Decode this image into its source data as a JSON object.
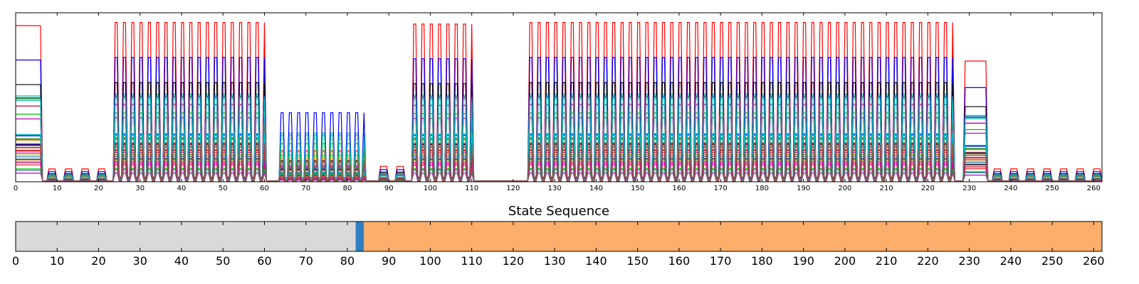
{
  "figure": {
    "state_title": "State Sequence"
  },
  "chart_data": [
    {
      "type": "line",
      "title": "",
      "xlabel": "",
      "ylabel": "",
      "xlim": [
        0,
        262
      ],
      "ylim": [
        0,
        1.05
      ],
      "x_ticks": [
        0,
        10,
        20,
        30,
        40,
        50,
        60,
        70,
        80,
        90,
        100,
        110,
        120,
        130,
        140,
        150,
        160,
        170,
        180,
        190,
        200,
        210,
        220,
        230,
        240,
        250,
        260
      ],
      "y_ticks": [],
      "grid": false,
      "legend": "none",
      "series_colors": [
        "#ff0000",
        "#00bfbf",
        "#0000ff",
        "#000000",
        "#bf00bf",
        "#007f00",
        "#bfbf00",
        "#00bf00",
        "#ff7f0e",
        "#1f77b4",
        "#c000c0",
        "#00c0c0",
        "#d62728",
        "#8c564b"
      ],
      "dense_bursts": [
        {
          "x_start": 0,
          "x_end": 6,
          "amplitude": 0.97,
          "note_color": "#ff0000"
        },
        {
          "x_start": 24,
          "x_end": 60,
          "amplitude": 0.99,
          "period": 2
        },
        {
          "x_start": 64,
          "x_end": 84,
          "amplitude": 0.55,
          "period": 2
        },
        {
          "x_start": 96,
          "x_end": 110,
          "amplitude": 0.98,
          "period": 2
        },
        {
          "x_start": 124,
          "x_end": 226,
          "amplitude": 0.99,
          "period": 2
        },
        {
          "x_start": 229,
          "x_end": 234,
          "amplitude": 0.75
        }
      ],
      "low_segments": [
        {
          "x_start": 7,
          "x_end": 23,
          "amplitude": 0.1
        },
        {
          "x_start": 86,
          "x_end": 94,
          "amplitude": 0.12
        },
        {
          "x_start": 236,
          "x_end": 262,
          "amplitude": 0.1
        }
      ]
    },
    {
      "type": "bar",
      "title": "State Sequence",
      "xlim": [
        0,
        262
      ],
      "x_ticks": [
        0,
        10,
        20,
        30,
        40,
        50,
        60,
        70,
        80,
        90,
        100,
        110,
        120,
        130,
        140,
        150,
        160,
        170,
        180,
        190,
        200,
        210,
        220,
        230,
        240,
        250,
        260
      ],
      "segments": [
        {
          "start": 0,
          "end": 82,
          "color": "#d9d9d9"
        },
        {
          "start": 82,
          "end": 84,
          "color": "#2f7fc1"
        },
        {
          "start": 84,
          "end": 262,
          "color": "#fdae6b"
        }
      ]
    }
  ]
}
